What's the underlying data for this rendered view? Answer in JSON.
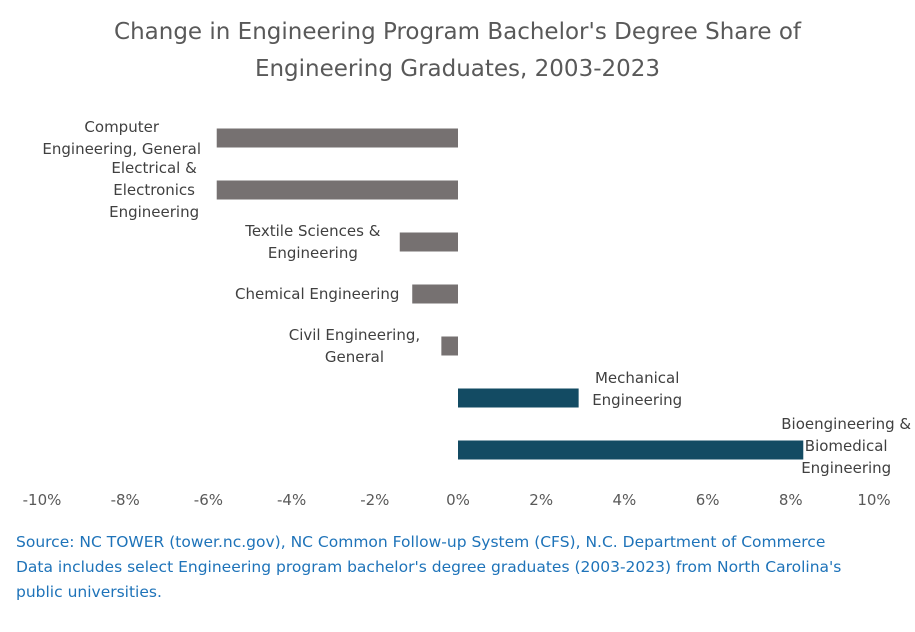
{
  "chart_data": {
    "type": "bar",
    "orientation": "horizontal",
    "title_lines": [
      "Change in Engineering Program Bachelor's Degree Share of",
      "Engineering Graduates, 2003-2023"
    ],
    "categories": [
      [
        "Computer",
        "Engineering, General"
      ],
      [
        "Electrical &",
        "Electronics",
        "Engineering"
      ],
      [
        "Textile Sciences &",
        "Engineering"
      ],
      [
        "Chemical Engineering"
      ],
      [
        "Civil Engineering,",
        "General"
      ],
      [
        "Mechanical",
        "Engineering"
      ],
      [
        "Bioengineering &",
        "Biomedical",
        "Engineering"
      ]
    ],
    "values": [
      -5.8,
      -5.8,
      -1.4,
      -1.1,
      -0.4,
      2.9,
      8.3
    ],
    "xlim": [
      -10,
      10
    ],
    "x_ticks": [
      "-10%",
      "-8%",
      "-6%",
      "-4%",
      "-2%",
      "0%",
      "2%",
      "4%",
      "6%",
      "8%",
      "10%"
    ],
    "colors": {
      "negative": "#767171",
      "positive": "#134b63"
    },
    "label_color": "#404040",
    "tick_color": "#595959",
    "grid": false,
    "legend": "none"
  },
  "source_lines": [
    "Source: NC TOWER (tower.nc.gov), NC Common Follow-up System (CFS), N.C. Department of Commerce",
    "Data includes select Engineering program bachelor's degree graduates (2003-2023) from North Carolina's",
    "public universities."
  ]
}
